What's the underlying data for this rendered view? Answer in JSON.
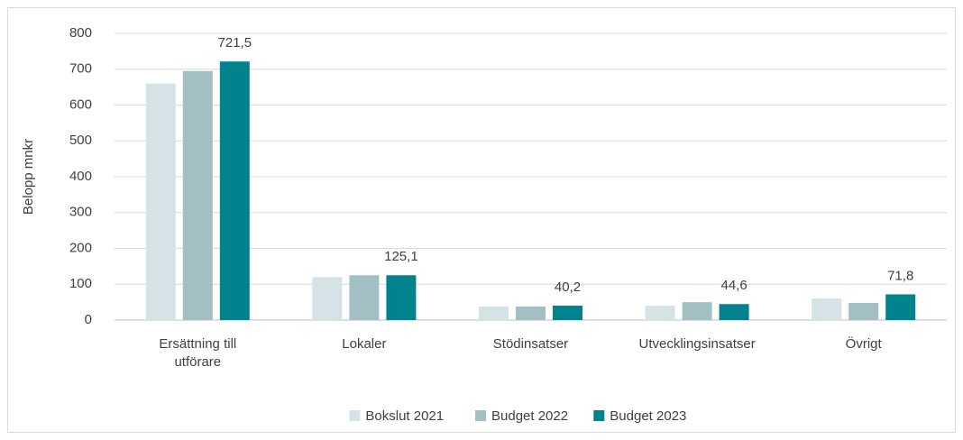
{
  "chart_data": {
    "type": "bar",
    "y_label": "Belopp mnkr",
    "categories": [
      "Ersättning till utförare",
      "Lokaler",
      "Stödinsatser",
      "Utvecklingsinsatser",
      "Övrigt"
    ],
    "series": [
      {
        "name": "Bokslut 2021",
        "color": "#d5e2e6",
        "values": [
          660,
          120,
          38,
          40,
          60
        ]
      },
      {
        "name": "Budget 2022",
        "color": "#a2c0c4",
        "values": [
          695,
          125,
          38,
          50,
          48
        ]
      },
      {
        "name": "Budget 2023",
        "color": "#00838f",
        "values": [
          721.5,
          125.1,
          40.2,
          44.6,
          71.8
        ],
        "value_labels": [
          "721,5",
          "125,1",
          "40,2",
          "44,6",
          "71,8"
        ]
      }
    ],
    "ylim": [
      0,
      800
    ],
    "yticks": [
      0,
      100,
      200,
      300,
      400,
      500,
      600,
      700,
      800
    ],
    "grid": true,
    "legend": "bottom"
  }
}
